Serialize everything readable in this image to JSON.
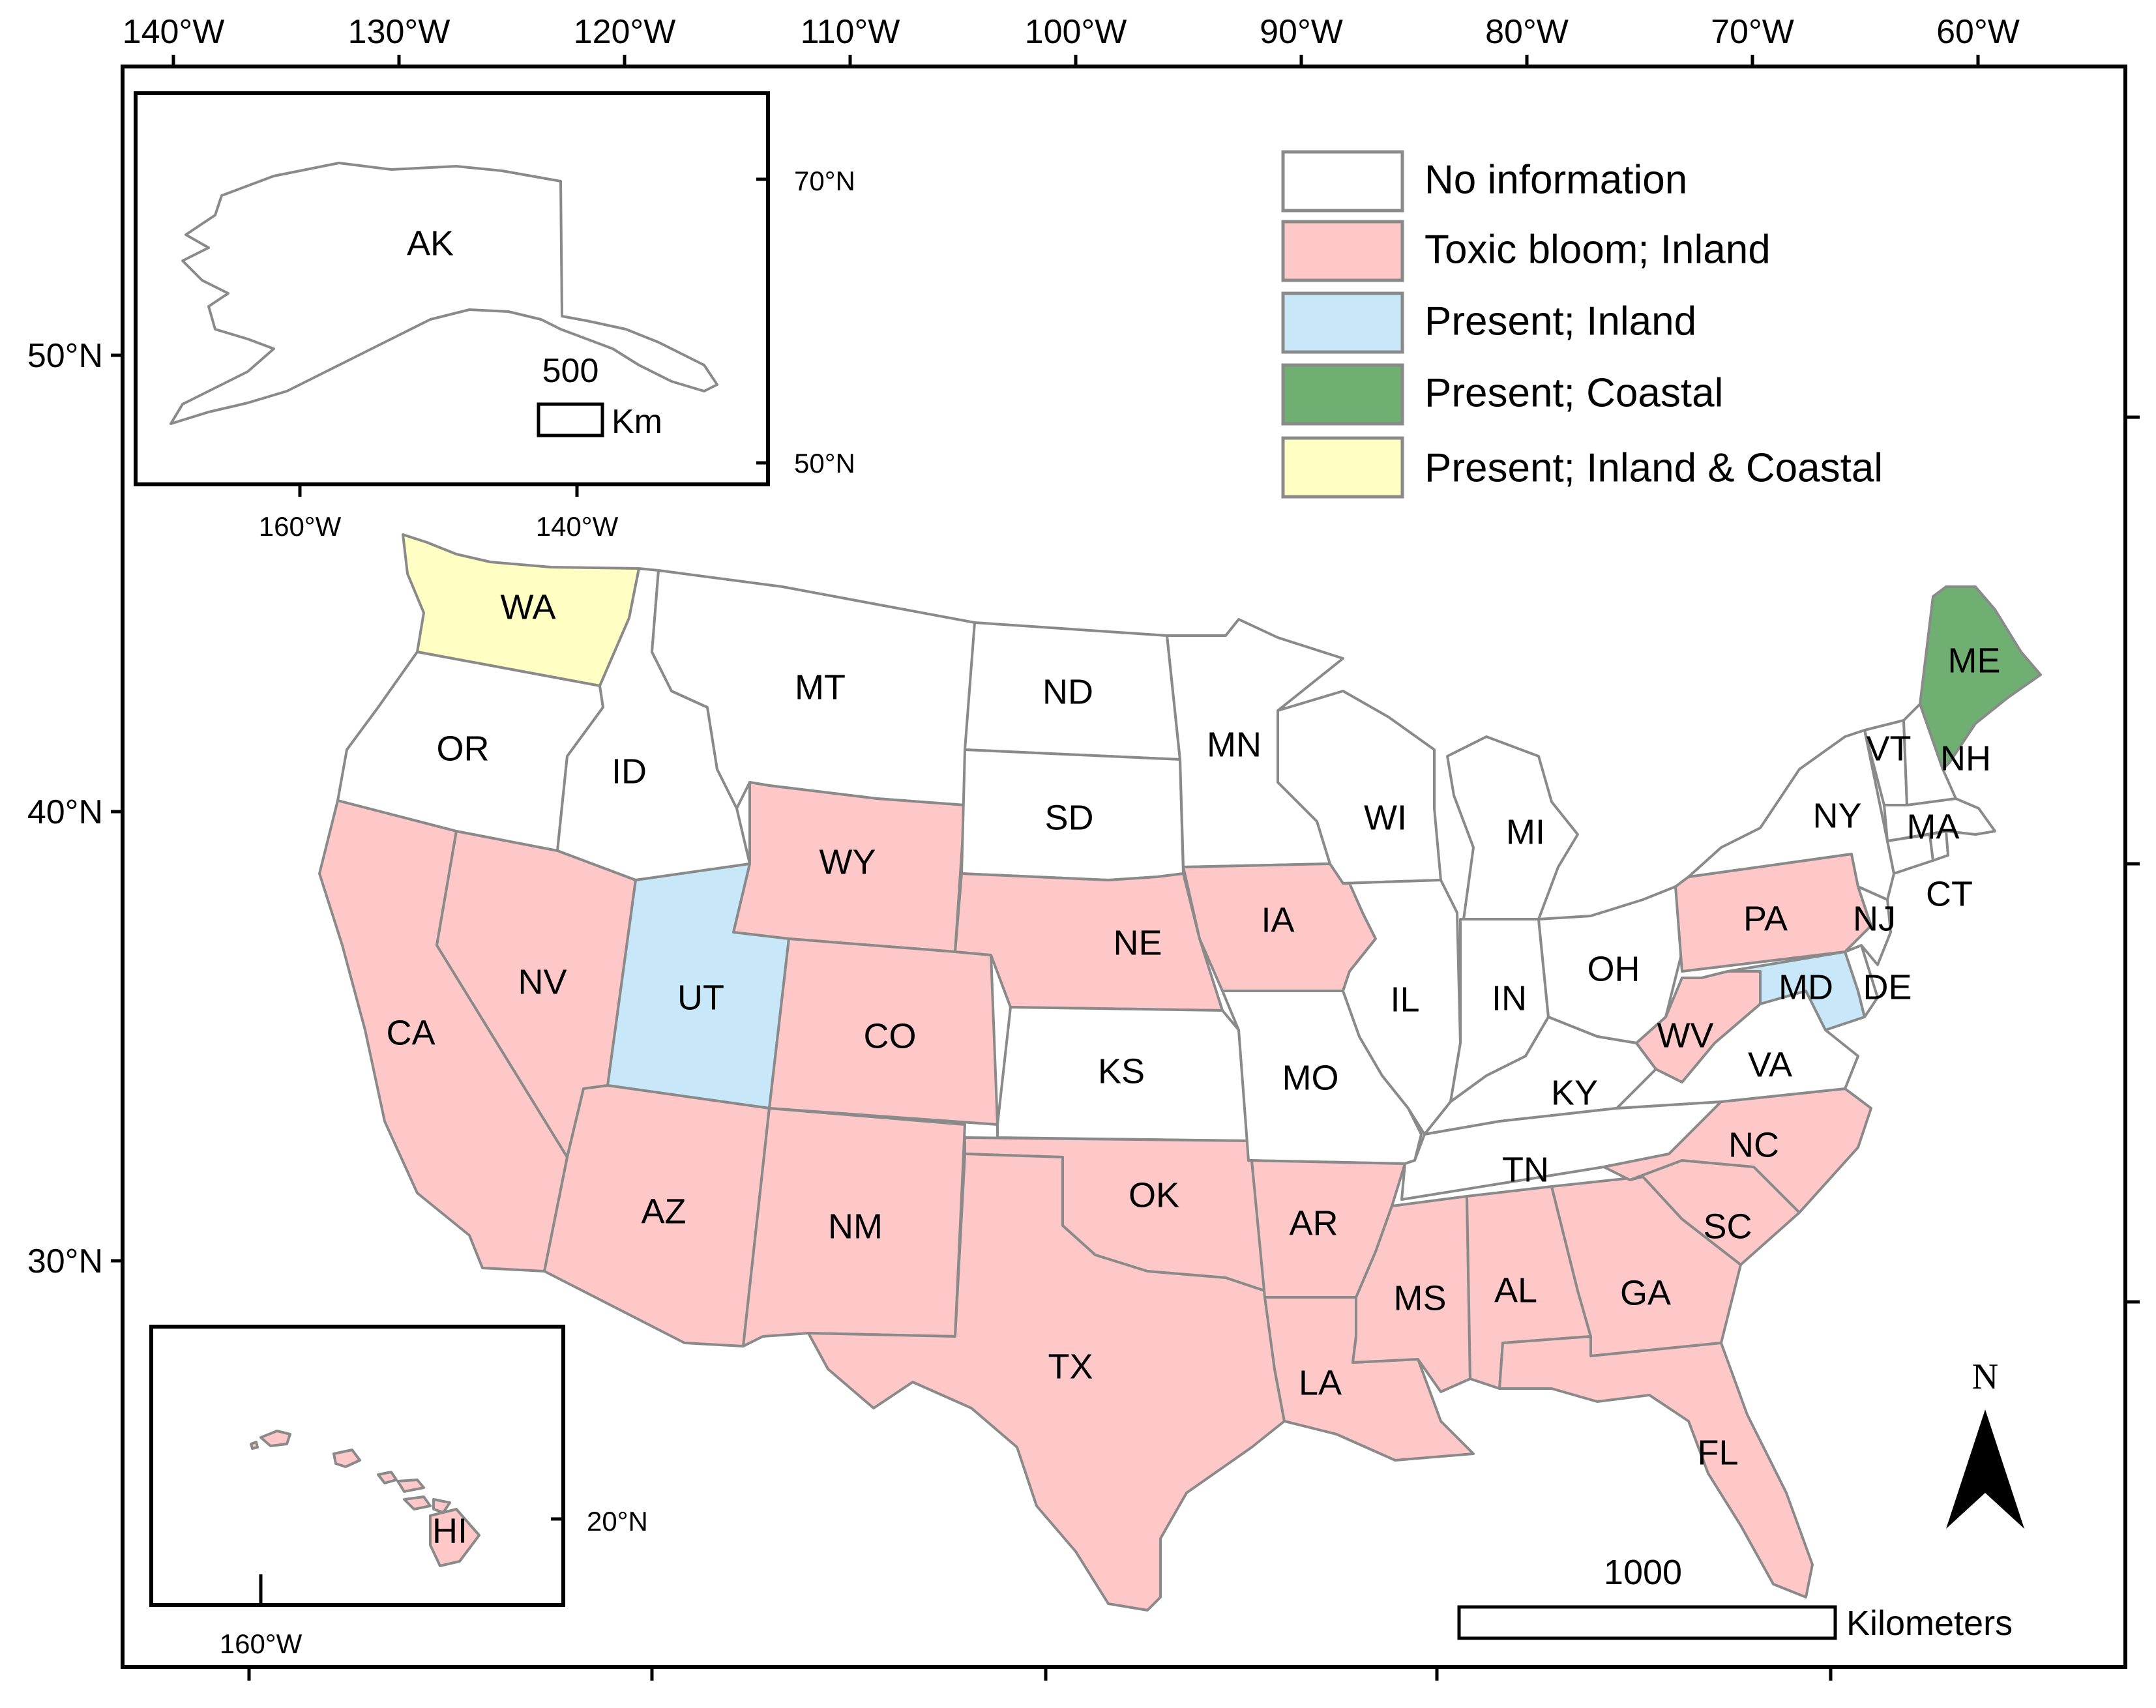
{
  "colors": {
    "no_information": "#ffffff",
    "toxic_inland": "#ffc8c8",
    "present_inland": "#c8e8fa",
    "present_coastal": "#6faf72",
    "present_inland_coastal": "#ffffc4",
    "border": "#8a8a8a"
  },
  "legend": [
    {
      "category": "no_information",
      "label": "No information"
    },
    {
      "category": "toxic_inland",
      "label": "Toxic bloom; Inland"
    },
    {
      "category": "present_inland",
      "label": "Present; Inland"
    },
    {
      "category": "present_coastal",
      "label": "Present; Coastal"
    },
    {
      "category": "present_inland_coastal",
      "label": "Present; Inland & Coastal"
    }
  ],
  "axes": {
    "longitude_top": [
      "140°W",
      "130°W",
      "120°W",
      "110°W",
      "100°W",
      "90°W",
      "80°W",
      "70°W",
      "60°W"
    ],
    "latitude_left": [
      "50°N",
      "40°N",
      "30°N"
    ]
  },
  "inset_alaska": {
    "state_label": "AK",
    "lat_labels": [
      "70°N",
      "50°N"
    ],
    "lon_labels": [
      "160°W",
      "140°W"
    ],
    "scale_value": "500",
    "scale_unit": "Km"
  },
  "inset_hawaii": {
    "state_label": "HI",
    "lat_label": "20°N",
    "lon_label": "160°W"
  },
  "north_arrow_label": "N",
  "scale_bar": {
    "value": "1000",
    "unit": "Kilometers"
  },
  "states": {
    "WA": {
      "label": "WA",
      "category": "present_inland_coastal"
    },
    "OR": {
      "label": "OR",
      "category": "no_information"
    },
    "CA": {
      "label": "CA",
      "category": "toxic_inland"
    },
    "ID": {
      "label": "ID",
      "category": "no_information"
    },
    "NV": {
      "label": "NV",
      "category": "toxic_inland"
    },
    "MT": {
      "label": "MT",
      "category": "no_information"
    },
    "WY": {
      "label": "WY",
      "category": "toxic_inland"
    },
    "UT": {
      "label": "UT",
      "category": "present_inland"
    },
    "AZ": {
      "label": "AZ",
      "category": "toxic_inland"
    },
    "CO": {
      "label": "CO",
      "category": "toxic_inland"
    },
    "NM": {
      "label": "NM",
      "category": "toxic_inland"
    },
    "ND": {
      "label": "ND",
      "category": "no_information"
    },
    "SD": {
      "label": "SD",
      "category": "no_information"
    },
    "NE": {
      "label": "NE",
      "category": "toxic_inland"
    },
    "KS": {
      "label": "KS",
      "category": "no_information"
    },
    "OK": {
      "label": "OK",
      "category": "toxic_inland"
    },
    "TX": {
      "label": "TX",
      "category": "toxic_inland"
    },
    "MN": {
      "label": "MN",
      "category": "no_information"
    },
    "IA": {
      "label": "IA",
      "category": "toxic_inland"
    },
    "MO": {
      "label": "MO",
      "category": "no_information"
    },
    "AR": {
      "label": "AR",
      "category": "toxic_inland"
    },
    "LA": {
      "label": "LA",
      "category": "toxic_inland"
    },
    "WI": {
      "label": "WI",
      "category": "no_information"
    },
    "IL": {
      "label": "IL",
      "category": "no_information"
    },
    "MI": {
      "label": "MI",
      "category": "no_information"
    },
    "IN": {
      "label": "IN",
      "category": "no_information"
    },
    "OH": {
      "label": "OH",
      "category": "no_information"
    },
    "KY": {
      "label": "KY",
      "category": "no_information"
    },
    "TN": {
      "label": "TN",
      "category": "no_information"
    },
    "MS": {
      "label": "MS",
      "category": "toxic_inland"
    },
    "AL": {
      "label": "AL",
      "category": "toxic_inland"
    },
    "GA": {
      "label": "GA",
      "category": "toxic_inland"
    },
    "FL": {
      "label": "FL",
      "category": "toxic_inland"
    },
    "SC": {
      "label": "SC",
      "category": "toxic_inland"
    },
    "NC": {
      "label": "NC",
      "category": "toxic_inland"
    },
    "VA": {
      "label": "VA",
      "category": "no_information"
    },
    "WV": {
      "label": "WV",
      "category": "toxic_inland"
    },
    "PA": {
      "label": "PA",
      "category": "toxic_inland"
    },
    "MD": {
      "label": "MD",
      "category": "present_inland"
    },
    "DE": {
      "label": "DE",
      "category": "no_information"
    },
    "NJ": {
      "label": "NJ",
      "category": "no_information"
    },
    "NY": {
      "label": "NY",
      "category": "no_information"
    },
    "CT": {
      "label": "CT",
      "category": "no_information"
    },
    "MA": {
      "label": "MA",
      "category": "no_information"
    },
    "VT": {
      "label": "VT",
      "category": "no_information"
    },
    "NH": {
      "label": "NH",
      "category": "no_information"
    },
    "ME": {
      "label": "ME",
      "category": "present_coastal"
    },
    "RI": {
      "category": "no_information"
    },
    "AK": {
      "category": "no_information"
    },
    "HI": {
      "category": "toxic_inland"
    }
  }
}
